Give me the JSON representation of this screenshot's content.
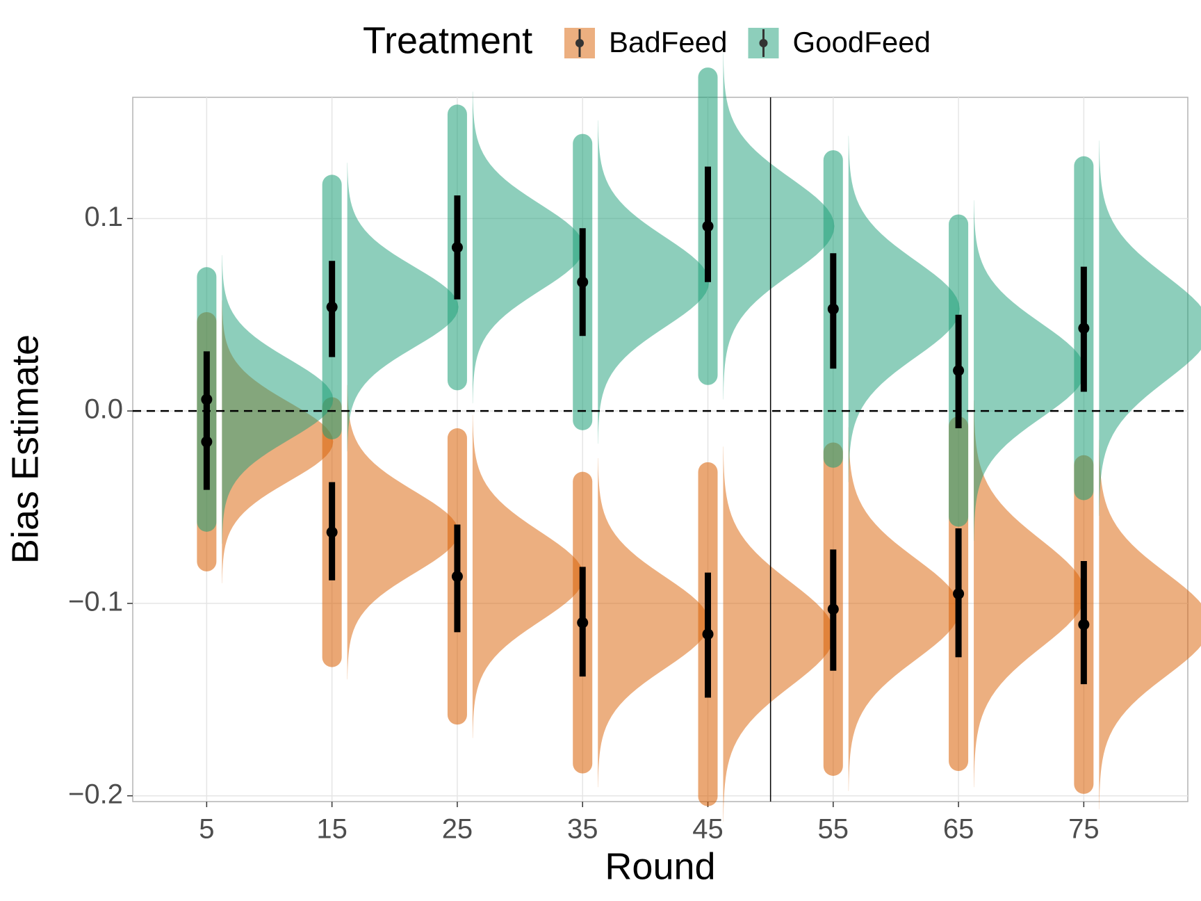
{
  "chart_data": {
    "type": "raincloud",
    "xlabel": "Round",
    "ylabel": "Bias Estimate",
    "legend_title": "Treatment",
    "legend_position": "top",
    "x": [
      5,
      15,
      25,
      35,
      45,
      55,
      65,
      75
    ],
    "series": [
      {
        "name": "BadFeed",
        "color": "#d95f02",
        "values": [
          -0.016,
          -0.063,
          -0.086,
          -0.11,
          -0.116,
          -0.103,
          -0.095,
          -0.111
        ],
        "lower": [
          -0.041,
          -0.088,
          -0.115,
          -0.138,
          -0.149,
          -0.135,
          -0.128,
          -0.142
        ],
        "upper": [
          0.008,
          -0.037,
          -0.059,
          -0.081,
          -0.084,
          -0.072,
          -0.061,
          -0.078
        ]
      },
      {
        "name": "GoodFeed",
        "color": "#1b9e77",
        "values": [
          0.006,
          0.054,
          0.085,
          0.067,
          0.096,
          0.053,
          0.021,
          0.043
        ],
        "lower": [
          -0.019,
          0.028,
          0.058,
          0.039,
          0.067,
          0.022,
          -0.009,
          0.01
        ],
        "upper": [
          0.031,
          0.078,
          0.112,
          0.095,
          0.127,
          0.082,
          0.05,
          0.075
        ]
      }
    ],
    "xlim": [
      -0.9,
      83.3
    ],
    "ylim": [
      -0.203,
      0.163
    ],
    "xticks": [
      5,
      15,
      25,
      35,
      45,
      55,
      65,
      75
    ],
    "yticks": [
      {
        "value": -0.2,
        "label": "−0.2"
      },
      {
        "value": -0.1,
        "label": "−0.1"
      },
      {
        "value": 0,
        "label": "0.0"
      },
      0.1
    ],
    "hline": 0,
    "vline": 50,
    "grid": true
  }
}
